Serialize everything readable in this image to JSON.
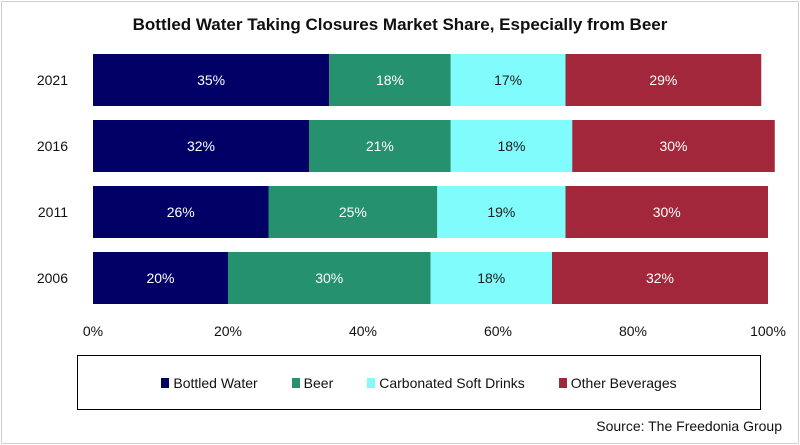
{
  "chart_data": {
    "type": "bar",
    "orientation": "horizontal",
    "stacked": "percent",
    "title": "Bottled Water Taking Closures Market Share, Especially from Beer",
    "categories": [
      "2021",
      "2016",
      "2011",
      "2006"
    ],
    "series": [
      {
        "name": "Bottled Water",
        "color": "#000066",
        "label_color": "#ffffff",
        "values": [
          35,
          32,
          26,
          20
        ]
      },
      {
        "name": "Beer",
        "color": "#25916f",
        "label_color": "#ffffff",
        "values": [
          18,
          21,
          25,
          30
        ]
      },
      {
        "name": "Carbonated Soft Drinks",
        "color": "#80fcfc",
        "label_color": "#1a1a1a",
        "values": [
          17,
          18,
          19,
          18
        ]
      },
      {
        "name": "Other Beverages",
        "color": "#a3273a",
        "label_color": "#ffffff",
        "values": [
          29,
          30,
          30,
          32
        ]
      }
    ],
    "data_labels": [
      [
        "35%",
        "32%",
        "26%",
        "20%"
      ],
      [
        "18%",
        "21%",
        "25%",
        "30%"
      ],
      [
        "17%",
        "18%",
        "19%",
        "18%"
      ],
      [
        "29%",
        "30%",
        "30%",
        "32%"
      ]
    ],
    "xlabel": "",
    "ylabel": "",
    "xlim": [
      0,
      100
    ],
    "xticks": [
      "0%",
      "20%",
      "40%",
      "60%",
      "80%",
      "100%"
    ],
    "grid": false,
    "legend_position": "bottom",
    "source": "Source: The Freedonia Group"
  }
}
